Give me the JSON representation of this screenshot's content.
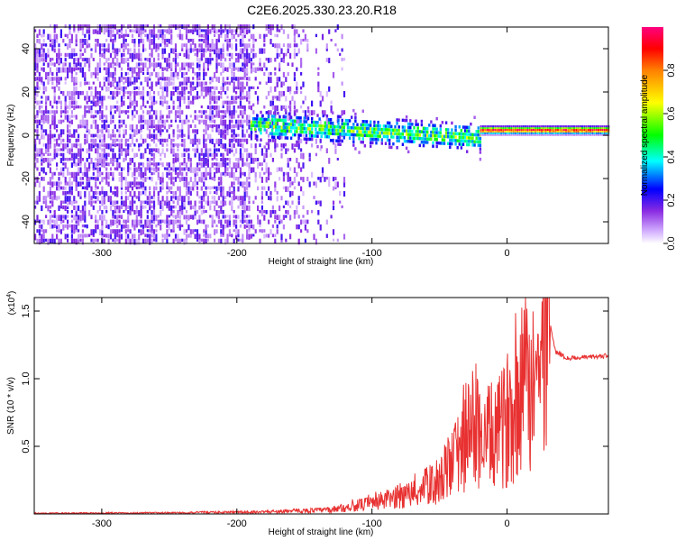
{
  "title": "C2E6.2025.330.23.20.R18",
  "chart_data": [
    {
      "type": "heatmap",
      "xlabel": "Height of straight line (km)",
      "ylabel": "Frequency (Hz)",
      "xlim": [
        -350,
        75
      ],
      "ylim": [
        -50,
        50
      ],
      "xticks": [
        -300,
        -200,
        -100,
        0
      ],
      "yticks": [
        -40,
        -20,
        0,
        20,
        40
      ],
      "colorbar": {
        "label": "Normalized spectral amplitude",
        "range": [
          0.0,
          1.0
        ],
        "ticks": [
          0.0,
          0.2,
          0.4,
          0.6,
          0.8
        ],
        "colors": [
          "#ffffff",
          "#d8b8ff",
          "#8a2be2",
          "#0000ff",
          "#00ffff",
          "#00ff00",
          "#ffff00",
          "#ff8000",
          "#ff0000",
          "#ff0080"
        ]
      },
      "features": [
        {
          "region": "broadband noise",
          "x_range": [
            -350,
            -120
          ],
          "freq_range": [
            -50,
            50
          ],
          "amplitude": 0.15
        },
        {
          "region": "narrow band",
          "x_range": [
            -190,
            -20
          ],
          "freq_center_start": 4,
          "freq_center_end": -2,
          "amplitude": 0.4
        },
        {
          "region": "carrier line",
          "x_range": [
            -20,
            75
          ],
          "freq_center": 2,
          "amplitude": 0.95
        }
      ]
    },
    {
      "type": "line",
      "xlabel": "Height of straight line (km)",
      "ylabel": "SNR (10 * v/v)",
      "multiplier": "(x10",
      "multiplier_exp": "4",
      "multiplier_close": ")",
      "xlim": [
        -350,
        75
      ],
      "ylim": [
        0,
        1.6
      ],
      "xticks": [
        -300,
        -200,
        -100,
        0
      ],
      "yticks": [
        0.5,
        1.0,
        1.5
      ],
      "color": "#e83030",
      "series": [
        {
          "x": [
            -350,
            -250,
            -180,
            -130,
            -100,
            -70,
            -50,
            -35,
            -25,
            -15,
            -5,
            10,
            25,
            32,
            36,
            45,
            60,
            75
          ],
          "y": [
            0.005,
            0.008,
            0.015,
            0.03,
            0.08,
            0.15,
            0.25,
            0.45,
            0.65,
            0.55,
            0.6,
            0.9,
            1.05,
            1.4,
            1.2,
            1.15,
            1.16,
            1.17
          ]
        }
      ]
    }
  ]
}
